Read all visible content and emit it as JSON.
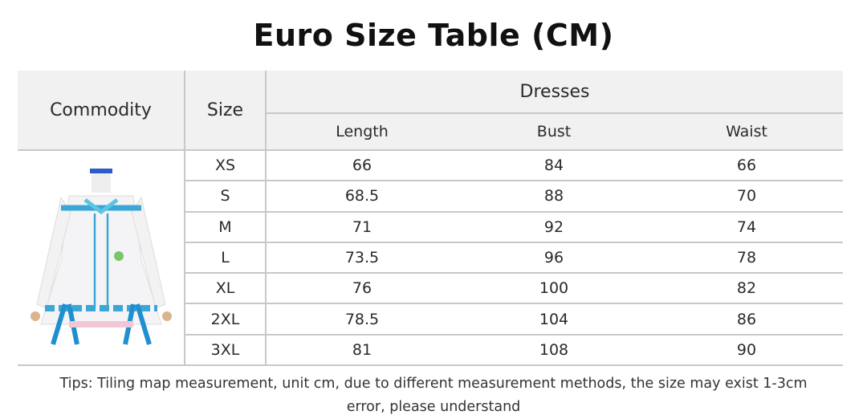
{
  "title": "Euro Size Table (CM)",
  "headers": {
    "commodity": "Commodity",
    "size": "Size",
    "group": "Dresses",
    "length": "Length",
    "bust": "Bust",
    "waist": "Waist"
  },
  "rows": [
    {
      "size": "XS",
      "length": "66",
      "bust": "84",
      "waist": "66"
    },
    {
      "size": "S",
      "length": "68.5",
      "bust": "88",
      "waist": "70"
    },
    {
      "size": "M",
      "length": "71",
      "bust": "92",
      "waist": "74"
    },
    {
      "size": "L",
      "length": "73.5",
      "bust": "96",
      "waist": "78"
    },
    {
      "size": "XL",
      "length": "76",
      "bust": "100",
      "waist": "82"
    },
    {
      "size": "2XL",
      "length": "78.5",
      "bust": "104",
      "waist": "86"
    },
    {
      "size": "3XL",
      "length": "81",
      "bust": "108",
      "waist": "90"
    }
  ],
  "tips": {
    "line1": "Tips: Tiling map measurement, unit cm, due to different measurement methods, the size may exist 1-3cm",
    "line2": "error, please understand"
  },
  "colors": {
    "header_bg": "#f1f1f1",
    "border": "#c8c8c8",
    "dress_accent": "#3aa7d6"
  }
}
